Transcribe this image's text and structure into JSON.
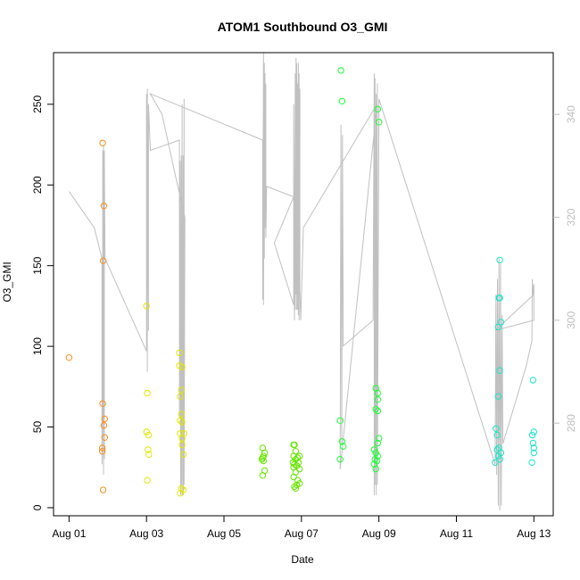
{
  "chart_data": {
    "type": "scatter",
    "title": "ATOM1 Southbound O3_GMI",
    "xlabel": "Date",
    "ylabel": "O3_GMI",
    "x_ticks": [
      "Aug 01",
      "Aug 03",
      "Aug 05",
      "Aug 07",
      "Aug 09",
      "Aug 11",
      "Aug 13"
    ],
    "x_tick_days": [
      1,
      3,
      5,
      7,
      9,
      11,
      13
    ],
    "xlim": [
      0.6,
      13.5
    ],
    "y_ticks": [
      0,
      50,
      100,
      150,
      200,
      250
    ],
    "ylim": [
      -5,
      282
    ],
    "y2_ticks": [
      280,
      300,
      320,
      340
    ],
    "y2lim": [
      262,
      352
    ],
    "grid": false,
    "series": [
      {
        "color": "#FF8C1A",
        "points": [
          [
            1.0,
            93
          ],
          [
            1.87,
            226
          ],
          [
            1.9,
            187
          ],
          [
            1.88,
            153
          ],
          [
            1.87,
            64.5
          ],
          [
            1.92,
            55
          ],
          [
            1.9,
            51
          ],
          [
            1.92,
            43.5
          ],
          [
            1.86,
            37
          ],
          [
            1.86,
            35
          ],
          [
            1.88,
            11
          ]
        ]
      },
      {
        "color": "#E0E600",
        "points": [
          [
            3.0,
            125
          ],
          [
            3.02,
            71
          ],
          [
            3.0,
            47
          ],
          [
            3.05,
            45
          ],
          [
            3.04,
            36
          ],
          [
            3.06,
            33
          ],
          [
            3.02,
            17
          ],
          [
            3.85,
            96
          ],
          [
            3.85,
            88
          ],
          [
            3.92,
            87
          ],
          [
            3.9,
            73
          ],
          [
            3.87,
            69
          ],
          [
            3.9,
            58
          ],
          [
            3.87,
            54
          ],
          [
            3.92,
            53
          ],
          [
            3.87,
            46
          ],
          [
            3.97,
            46
          ],
          [
            3.92,
            43
          ],
          [
            3.92,
            39
          ],
          [
            3.95,
            33
          ],
          [
            3.9,
            12
          ],
          [
            3.95,
            11
          ],
          [
            3.87,
            9
          ]
        ]
      },
      {
        "color": "#66E600",
        "points": [
          [
            6.0,
            37
          ],
          [
            6.05,
            34
          ],
          [
            6.02,
            32
          ],
          [
            6.0,
            31
          ],
          [
            5.98,
            30
          ],
          [
            6.02,
            29
          ],
          [
            6.05,
            23
          ],
          [
            6.0,
            20
          ],
          [
            6.8,
            39
          ],
          [
            6.82,
            39
          ],
          [
            6.85,
            35
          ],
          [
            6.8,
            32
          ],
          [
            6.95,
            32
          ],
          [
            6.9,
            31
          ],
          [
            6.85,
            30
          ],
          [
            6.78,
            28
          ],
          [
            6.92,
            28
          ],
          [
            6.82,
            27
          ],
          [
            6.88,
            26
          ],
          [
            6.8,
            25
          ],
          [
            6.95,
            24
          ],
          [
            6.85,
            22
          ],
          [
            6.8,
            19
          ],
          [
            6.9,
            17
          ],
          [
            6.95,
            15
          ],
          [
            6.88,
            14
          ],
          [
            6.82,
            13
          ],
          [
            6.85,
            12
          ]
        ]
      },
      {
        "color": "#1AFF33",
        "points": [
          [
            8.02,
            271
          ],
          [
            8.05,
            252
          ],
          [
            8.0,
            54
          ],
          [
            8.05,
            41
          ],
          [
            8.08,
            38
          ],
          [
            8.0,
            30
          ],
          [
            8.97,
            247
          ],
          [
            9.0,
            239
          ],
          [
            8.92,
            74
          ],
          [
            8.97,
            71
          ],
          [
            8.97,
            67
          ],
          [
            8.92,
            61
          ],
          [
            8.97,
            60
          ],
          [
            9.0,
            43
          ],
          [
            8.97,
            40
          ],
          [
            8.88,
            36
          ],
          [
            8.92,
            34
          ],
          [
            8.97,
            32
          ],
          [
            8.9,
            30
          ],
          [
            8.95,
            29
          ],
          [
            8.88,
            27
          ],
          [
            8.92,
            24
          ]
        ]
      },
      {
        "color": "#1AE6C8",
        "points": [
          [
            12.12,
            153.5
          ],
          [
            12.12,
            130
          ],
          [
            12.1,
            130
          ],
          [
            12.15,
            115
          ],
          [
            12.08,
            112
          ],
          [
            12.12,
            85
          ],
          [
            12.08,
            69
          ],
          [
            12.02,
            49
          ],
          [
            12.05,
            45
          ],
          [
            12.1,
            37
          ],
          [
            12.05,
            36
          ],
          [
            12.15,
            34
          ],
          [
            12.08,
            32
          ],
          [
            12.12,
            30
          ],
          [
            12.0,
            28
          ],
          [
            12.98,
            79
          ],
          [
            13.0,
            47
          ],
          [
            12.96,
            45
          ],
          [
            12.98,
            40
          ],
          [
            13.0,
            37
          ],
          [
            13.0,
            34
          ],
          [
            12.95,
            28
          ]
        ]
      }
    ],
    "secondary_line": {
      "color": "#C0C0C0",
      "points": [
        [
          1.0,
          325
        ],
        [
          1.65,
          318
        ],
        [
          1.85,
          312
        ],
        [
          1.85,
          272
        ],
        [
          1.87,
          285
        ],
        [
          1.87,
          333
        ],
        [
          1.89,
          270
        ],
        [
          1.89,
          334
        ],
        [
          1.91,
          273
        ],
        [
          1.91,
          333
        ],
        [
          1.93,
          312
        ],
        [
          3.0,
          294
        ],
        [
          3.0,
          344
        ],
        [
          3.02,
          290
        ],
        [
          3.02,
          345
        ],
        [
          3.05,
          298
        ],
        [
          3.05,
          342
        ],
        [
          3.1,
          333
        ],
        [
          3.85,
          335
        ],
        [
          3.85,
          281
        ],
        [
          3.87,
          331
        ],
        [
          3.88,
          266
        ],
        [
          3.9,
          332
        ],
        [
          3.9,
          268
        ],
        [
          3.92,
          342
        ],
        [
          3.92,
          266
        ],
        [
          3.95,
          332
        ],
        [
          3.95,
          266
        ],
        [
          3.97,
          343
        ],
        [
          3.97,
          268
        ],
        [
          3.99,
          320
        ],
        [
          3.75,
          328
        ],
        [
          3.4,
          340
        ],
        [
          3.1,
          344
        ],
        [
          6.0,
          335
        ],
        [
          6.0,
          304
        ],
        [
          6.02,
          352
        ],
        [
          6.02,
          303
        ],
        [
          6.04,
          350
        ],
        [
          6.04,
          312
        ],
        [
          6.06,
          348
        ],
        [
          6.06,
          318
        ],
        [
          6.08,
          346
        ],
        [
          6.08,
          316
        ],
        [
          6.1,
          326
        ],
        [
          6.8,
          324
        ],
        [
          6.3,
          315
        ],
        [
          6.8,
          303
        ],
        [
          6.8,
          342
        ],
        [
          6.82,
          300
        ],
        [
          6.84,
          348
        ],
        [
          6.84,
          302
        ],
        [
          6.86,
          351
        ],
        [
          6.86,
          305
        ],
        [
          6.88,
          350
        ],
        [
          6.88,
          302
        ],
        [
          6.9,
          346
        ],
        [
          6.9,
          302
        ],
        [
          6.92,
          350
        ],
        [
          6.92,
          301
        ],
        [
          6.94,
          348
        ],
        [
          6.94,
          300
        ],
        [
          6.96,
          345
        ],
        [
          6.96,
          306
        ],
        [
          6.98,
          300
        ],
        [
          7.05,
          318
        ],
        [
          8.95,
          342
        ],
        [
          8.0,
          271
        ],
        [
          8.02,
          338
        ],
        [
          8.04,
          276
        ],
        [
          8.06,
          336
        ],
        [
          8.08,
          295
        ],
        [
          8.85,
          300
        ],
        [
          8.88,
          348
        ],
        [
          8.88,
          266
        ],
        [
          8.9,
          347
        ],
        [
          8.9,
          268
        ],
        [
          8.93,
          344
        ],
        [
          8.93,
          266
        ],
        [
          8.96,
          346
        ],
        [
          8.96,
          268
        ],
        [
          9.0,
          343
        ],
        [
          12.0,
          272
        ],
        [
          12.02,
          305
        ],
        [
          12.04,
          270
        ],
        [
          12.06,
          308
        ],
        [
          12.08,
          264
        ],
        [
          12.1,
          312
        ],
        [
          12.12,
          263
        ],
        [
          12.14,
          311
        ],
        [
          12.16,
          264
        ],
        [
          12.18,
          301
        ],
        [
          12.2,
          276
        ],
        [
          12.8,
          291
        ],
        [
          12.95,
          296
        ],
        [
          12.96,
          308
        ],
        [
          12.98,
          305
        ],
        [
          13.0,
          307
        ],
        [
          13.0,
          300
        ],
        [
          12.0,
          298
        ],
        [
          13.0,
          305
        ]
      ]
    }
  }
}
